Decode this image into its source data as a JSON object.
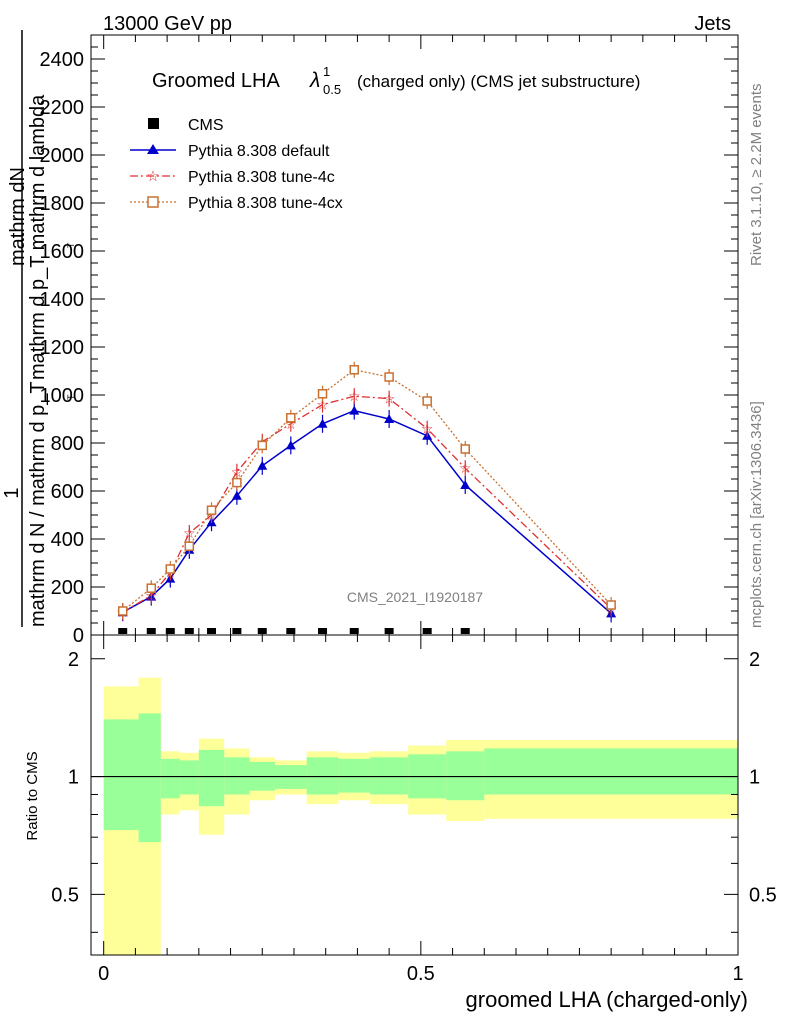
{
  "header": {
    "left": "13000 GeV pp",
    "right": "Jets"
  },
  "title": {
    "main": "Groomed LHA",
    "lambda": "λ",
    "sup": "1",
    "sub": "0.5",
    "rest": "(charged only) (CMS jet substructure)"
  },
  "side_texts": {
    "rivet": "Rivet 3.1.10, ≥ 2.2M events",
    "mcplots": "mcplots.cern.ch [arXiv:1306.3436]"
  },
  "watermark": "CMS_2021_I1920187",
  "ylabel": {
    "one": "1",
    "den": "mathrm d N / mathrm d p_T",
    "num1": "mathrm dN",
    "num2": "mathrm d p_T mathrm d lambda",
    "T1": "T",
    "T2": "T"
  },
  "colors": {
    "cms": "#000000",
    "default": "#0000cc",
    "tune4c": "#e03030",
    "tune4cx": "#c87030",
    "band_inner": "#99ff99",
    "band_outer": "#ffff99"
  },
  "chart_data": [
    {
      "type": "line",
      "xlim": [
        -0.02,
        1.0
      ],
      "ylim": [
        0,
        2500
      ],
      "yticks": [
        0,
        200,
        400,
        600,
        800,
        1000,
        1200,
        1400,
        1600,
        1800,
        2000,
        2200,
        2400
      ],
      "ytick_labels": [
        "0",
        "200",
        "400",
        "600",
        "800",
        "1000",
        "1200",
        "1400",
        "1600",
        "1800",
        "2000",
        "2200",
        "2400"
      ],
      "legend": [
        "CMS",
        "Pythia 8.308 default",
        "Pythia 8.308 tune-4c",
        "Pythia 8.308 tune-4cx"
      ],
      "legend_position": "top-left",
      "x": [
        0.03,
        0.075,
        0.105,
        0.135,
        0.17,
        0.21,
        0.25,
        0.295,
        0.345,
        0.395,
        0.45,
        0.51,
        0.57,
        0.8
      ],
      "series": [
        {
          "name": "CMS",
          "marker": "square",
          "values": [
            2,
            2,
            2,
            2,
            2,
            2,
            2,
            2,
            2,
            2,
            2,
            2,
            2,
            null
          ]
        },
        {
          "name": "Pythia 8.308 default",
          "marker": "triangle",
          "values": [
            95,
            160,
            235,
            355,
            470,
            580,
            705,
            790,
            880,
            935,
            900,
            830,
            625,
            90
          ]
        },
        {
          "name": "Pythia 8.308 tune-4c",
          "marker": "star",
          "values": [
            95,
            165,
            260,
            425,
            500,
            680,
            805,
            880,
            960,
            995,
            985,
            860,
            695,
            110
          ]
        },
        {
          "name": "Pythia 8.308 tune-4cx",
          "marker": "open-square",
          "values": [
            100,
            195,
            275,
            370,
            520,
            635,
            790,
            905,
            1005,
            1105,
            1075,
            975,
            775,
            125
          ]
        }
      ]
    },
    {
      "type": "area",
      "ylabel": "Ratio to CMS",
      "xlabel": "groomed LHA (charged-only)",
      "xlim": [
        -0.02,
        1.0
      ],
      "ylim": [
        0.35,
        2.3
      ],
      "xticks": [
        0,
        0.5,
        1
      ],
      "xtick_labels": [
        "0",
        "0.5",
        "1"
      ],
      "yticks": [
        0.5,
        1,
        2
      ],
      "ytick_labels": [
        "0.5",
        "1",
        "2"
      ],
      "bins": [
        0.0,
        0.055,
        0.09,
        0.12,
        0.15,
        0.19,
        0.23,
        0.27,
        0.32,
        0.37,
        0.42,
        0.48,
        0.54,
        0.6,
        1.0
      ],
      "inner_low": [
        0.73,
        0.68,
        0.88,
        0.9,
        0.84,
        0.9,
        0.92,
        0.93,
        0.9,
        0.91,
        0.9,
        0.88,
        0.87,
        0.9
      ],
      "inner_high": [
        1.4,
        1.45,
        1.11,
        1.1,
        1.17,
        1.12,
        1.09,
        1.07,
        1.12,
        1.11,
        1.12,
        1.14,
        1.16,
        1.18
      ],
      "outer_low": [
        0.35,
        0.35,
        0.8,
        0.82,
        0.71,
        0.8,
        0.87,
        0.9,
        0.85,
        0.87,
        0.85,
        0.8,
        0.77,
        0.78
      ],
      "outer_high": [
        1.7,
        1.79,
        1.16,
        1.15,
        1.25,
        1.18,
        1.12,
        1.1,
        1.16,
        1.15,
        1.16,
        1.2,
        1.24,
        1.24
      ]
    }
  ]
}
